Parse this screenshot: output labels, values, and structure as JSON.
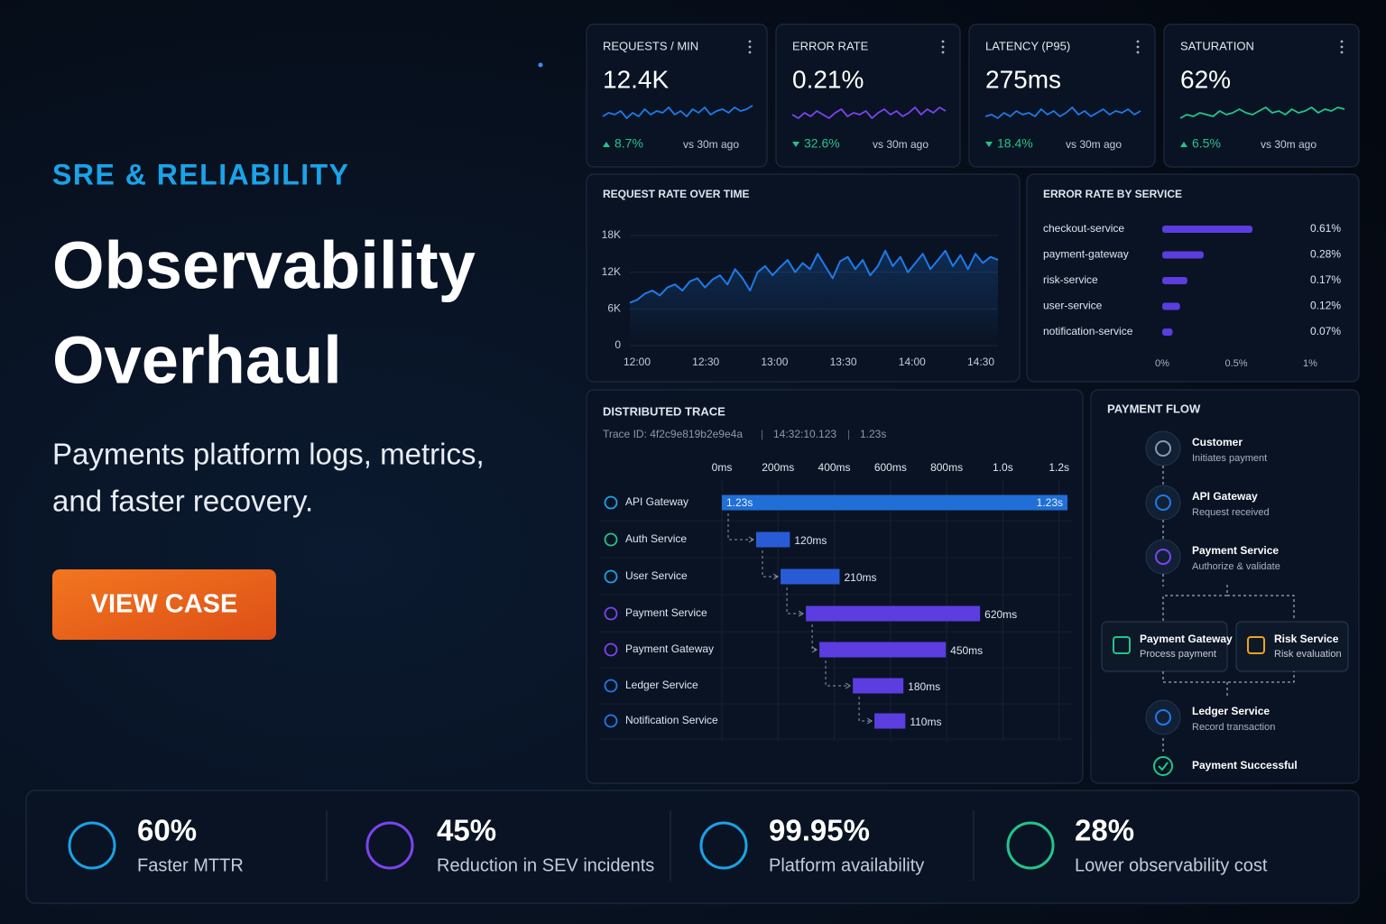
{
  "hero": {
    "eyebrow": "SRE & RELIABILITY",
    "title_lines": [
      "Observability",
      "Overhaul"
    ],
    "subtitle_lines": [
      "Payments platform logs, metrics,",
      "and faster recovery."
    ],
    "button": "VIEW CASE"
  },
  "kpis": [
    {
      "label": "REQUESTS / MIN",
      "value": "12.4K",
      "delta": "8.7%",
      "direction": "up",
      "compare": "vs 30m ago",
      "color": "#1f7ae8",
      "ylim": [
        0,
        12
      ],
      "values": [
        4,
        6,
        5,
        7,
        3,
        6,
        4,
        8,
        5,
        7,
        6,
        9,
        5,
        7,
        4,
        8,
        6,
        9,
        5,
        7,
        8,
        6,
        9,
        7,
        8,
        10
      ]
    },
    {
      "label": "ERROR RATE",
      "value": "0.21%",
      "delta": "32.6%",
      "direction": "down",
      "compare": "vs 30m ago",
      "color": "#7b45f0",
      "ylim": [
        0,
        12
      ],
      "values": [
        5,
        3,
        6,
        4,
        7,
        5,
        3,
        6,
        8,
        4,
        6,
        5,
        7,
        3,
        6,
        8,
        5,
        7,
        4,
        6,
        9,
        5,
        8,
        6,
        9,
        7
      ]
    },
    {
      "label": "LATENCY (P95)",
      "value": "275ms",
      "delta": "18.4%",
      "direction": "down",
      "compare": "vs 30m ago",
      "color": "#1f7ae8",
      "ylim": [
        0,
        12
      ],
      "values": [
        4,
        5,
        3,
        6,
        4,
        7,
        5,
        6,
        4,
        8,
        5,
        7,
        4,
        6,
        9,
        5,
        7,
        4,
        6,
        8,
        5,
        7,
        6,
        8,
        5,
        7
      ]
    },
    {
      "label": "SATURATION",
      "value": "62%",
      "delta": "6.5%",
      "direction": "up",
      "compare": "vs 30m ago",
      "color": "#22c58b",
      "ylim": [
        0,
        12
      ],
      "values": [
        3,
        5,
        4,
        6,
        5,
        4,
        7,
        5,
        6,
        8,
        6,
        5,
        7,
        9,
        6,
        7,
        5,
        8,
        6,
        7,
        9,
        6,
        8,
        7,
        9,
        8
      ]
    }
  ],
  "request_chart": {
    "type": "line",
    "title": "REQUEST RATE OVER TIME",
    "color": "#1f7ae8",
    "ylim": [
      0,
      18000
    ],
    "yticks": [
      {
        "value": 0,
        "label": "0"
      },
      {
        "value": 6000,
        "label": "6K"
      },
      {
        "value": 12000,
        "label": "12K"
      },
      {
        "value": 18000,
        "label": "18K"
      }
    ],
    "x_labels": [
      "12:00",
      "12:30",
      "13:00",
      "13:30",
      "14:00",
      "14:30"
    ],
    "values": [
      7000,
      7500,
      8500,
      9000,
      8200,
      9500,
      10000,
      9000,
      10500,
      11000,
      9500,
      10800,
      11500,
      10000,
      12500,
      11000,
      9000,
      12000,
      13000,
      11500,
      12800,
      14000,
      12000,
      13500,
      12500,
      15000,
      13000,
      11000,
      13800,
      14500,
      12500,
      14000,
      11500,
      13000,
      15500,
      13000,
      14500,
      12000,
      13500,
      15000,
      12500,
      14000,
      15500,
      13000,
      14800,
      12500,
      15000,
      13500,
      14500,
      14000
    ]
  },
  "error_chart": {
    "type": "bar",
    "title": "ERROR RATE BY SERVICE",
    "color": "#5b3de0",
    "categories": [
      "checkout-service",
      "payment-gateway",
      "risk-service",
      "user-service",
      "notification-service"
    ],
    "values": [
      0.61,
      0.28,
      0.17,
      0.12,
      0.07
    ],
    "value_labels": [
      "0.61%",
      "0.28%",
      "0.17%",
      "0.12%",
      "0.07%"
    ],
    "xlim": [
      0,
      1
    ],
    "xticks": [
      {
        "value": 0,
        "label": "0%"
      },
      {
        "value": 0.5,
        "label": "0.5%"
      },
      {
        "value": 1,
        "label": "1%"
      }
    ]
  },
  "trace": {
    "title": "DISTRIBUTED TRACE",
    "trace_id": "Trace ID: 4f2c9e819b2e9e4a",
    "timestamp": "14:32:10.123",
    "duration": "1.23s",
    "xlim": [
      0,
      1230
    ],
    "xticks": [
      {
        "value": 0,
        "label": "0ms"
      },
      {
        "value": 200,
        "label": "200ms"
      },
      {
        "value": 400,
        "label": "400ms"
      },
      {
        "value": 600,
        "label": "600ms"
      },
      {
        "value": 800,
        "label": "800ms"
      },
      {
        "value": 1000,
        "label": "1.0s"
      },
      {
        "value": 1200,
        "label": "1.2s"
      }
    ],
    "spans": [
      {
        "name": "API Gateway",
        "start": 0,
        "duration": 1230,
        "label": "1.23s",
        "color": "#1f6fd6"
      },
      {
        "name": "Auth Service",
        "start": 122,
        "duration": 120,
        "label": "120ms",
        "color": "#2a5bd7"
      },
      {
        "name": "User Service",
        "start": 209,
        "duration": 210,
        "label": "210ms",
        "color": "#2a5bd7"
      },
      {
        "name": "Payment Service",
        "start": 299,
        "duration": 620,
        "label": "620ms",
        "color": "#5b3de0"
      },
      {
        "name": "Payment Gateway",
        "start": 347,
        "duration": 450,
        "label": "450ms",
        "color": "#5b3de0"
      },
      {
        "name": "Ledger Service",
        "start": 466,
        "duration": 180,
        "label": "180ms",
        "color": "#5b3de0"
      },
      {
        "name": "Notification Service",
        "start": 543,
        "duration": 110,
        "label": "110ms",
        "color": "#5b3de0"
      }
    ]
  },
  "flow": {
    "title": "PAYMENT FLOW",
    "nodes": [
      {
        "title": "Customer",
        "subtitle": "Initiates payment"
      },
      {
        "title": "API Gateway",
        "subtitle": "Request received"
      },
      {
        "title": "Payment Service",
        "subtitle": "Authorize & validate"
      },
      {
        "title": "Payment Gateway",
        "subtitle": "Process payment"
      },
      {
        "title": "Risk Service",
        "subtitle": "Risk evaluation"
      },
      {
        "title": "Ledger Service",
        "subtitle": "Record transaction"
      },
      {
        "title": "Payment Successful"
      }
    ]
  },
  "stats": [
    {
      "value": "60%",
      "label": "Faster MTTR",
      "color": "#1aa3e8"
    },
    {
      "value": "45%",
      "label": "Reduction in SEV incidents",
      "color": "#7b45f0"
    },
    {
      "value": "99.95%",
      "label": "Platform availability",
      "color": "#1aa3e8"
    },
    {
      "value": "28%",
      "label": "Lower observability cost",
      "color": "#22c58b"
    }
  ]
}
